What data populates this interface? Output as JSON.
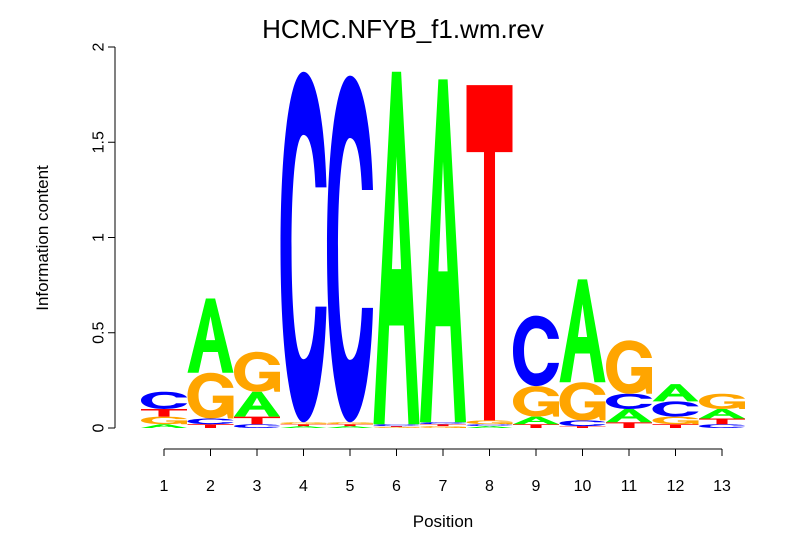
{
  "chart_data": {
    "type": "sequence-logo",
    "title": "HCMC.NFYB_f1.wm.rev",
    "xlabel": "Position",
    "ylabel": "Information content",
    "ylim": [
      0,
      2
    ],
    "yticks": [
      "0",
      "0.5",
      "1",
      "1.5",
      "2"
    ],
    "xticks": [
      "1",
      "2",
      "3",
      "4",
      "5",
      "6",
      "7",
      "8",
      "9",
      "10",
      "11",
      "12",
      "13"
    ],
    "colors": {
      "A": "#00ff00",
      "C": "#0000ff",
      "G": "#ffa500",
      "T": "#ff0000"
    },
    "positions": [
      {
        "position": "1",
        "letters": [
          [
            "A",
            0.02
          ],
          [
            "G",
            0.04
          ],
          [
            "T",
            0.04
          ],
          [
            "C",
            0.09
          ]
        ]
      },
      {
        "position": "2",
        "letters": [
          [
            "T",
            0.02
          ],
          [
            "C",
            0.03
          ],
          [
            "G",
            0.24
          ],
          [
            "A",
            0.39
          ]
        ]
      },
      {
        "position": "3",
        "letters": [
          [
            "C",
            0.02
          ],
          [
            "T",
            0.04
          ],
          [
            "A",
            0.13
          ],
          [
            "G",
            0.21
          ]
        ]
      },
      {
        "position": "4",
        "letters": [
          [
            "A",
            0.01
          ],
          [
            "T",
            0.01
          ],
          [
            "G",
            0.01
          ],
          [
            "C",
            1.84
          ]
        ]
      },
      {
        "position": "5",
        "letters": [
          [
            "A",
            0.01
          ],
          [
            "T",
            0.01
          ],
          [
            "G",
            0.01
          ],
          [
            "C",
            1.82
          ]
        ]
      },
      {
        "position": "6",
        "letters": [
          [
            "G",
            0.005
          ],
          [
            "T",
            0.005
          ],
          [
            "C",
            0.01
          ],
          [
            "A",
            1.85
          ]
        ]
      },
      {
        "position": "7",
        "letters": [
          [
            "G",
            0.01
          ],
          [
            "T",
            0.01
          ],
          [
            "C",
            0.01
          ],
          [
            "A",
            1.8
          ]
        ]
      },
      {
        "position": "8",
        "letters": [
          [
            "A",
            0.01
          ],
          [
            "C",
            0.01
          ],
          [
            "G",
            0.02
          ],
          [
            "T",
            1.76
          ]
        ]
      },
      {
        "position": "9",
        "letters": [
          [
            "T",
            0.02
          ],
          [
            "A",
            0.04
          ],
          [
            "G",
            0.16
          ],
          [
            "C",
            0.37
          ]
        ]
      },
      {
        "position": "10",
        "letters": [
          [
            "T",
            0.01
          ],
          [
            "C",
            0.03
          ],
          [
            "G",
            0.2
          ],
          [
            "A",
            0.54
          ]
        ]
      },
      {
        "position": "11",
        "letters": [
          [
            "T",
            0.03
          ],
          [
            "A",
            0.07
          ],
          [
            "C",
            0.08
          ],
          [
            "G",
            0.28
          ]
        ]
      },
      {
        "position": "12",
        "letters": [
          [
            "T",
            0.02
          ],
          [
            "G",
            0.04
          ],
          [
            "C",
            0.08
          ],
          [
            "A",
            0.09
          ]
        ]
      },
      {
        "position": "13",
        "letters": [
          [
            "C",
            0.02
          ],
          [
            "T",
            0.03
          ],
          [
            "A",
            0.05
          ],
          [
            "G",
            0.08
          ]
        ]
      }
    ]
  }
}
